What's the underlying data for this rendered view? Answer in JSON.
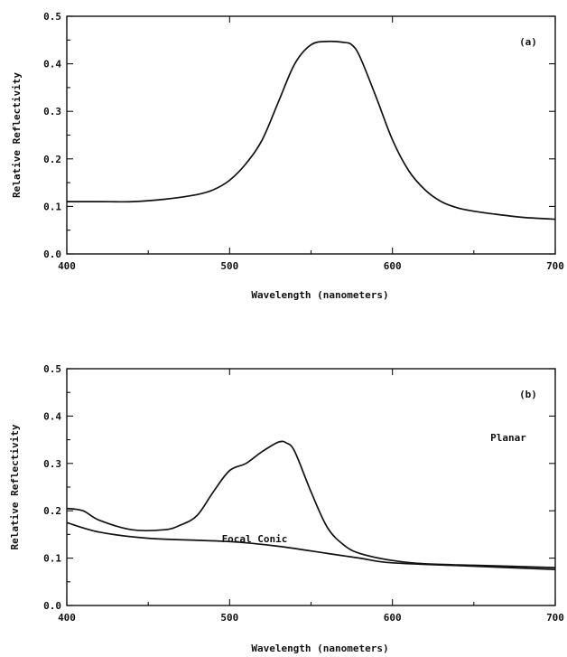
{
  "chart_data": [
    {
      "type": "line",
      "panel_label": "(a)",
      "xlabel": "Wavelength (nanometers)",
      "ylabel": "Relative Reflectivity",
      "xlim": [
        400,
        700
      ],
      "ylim": [
        0.0,
        0.5
      ],
      "xticks": [
        "400",
        "500",
        "600",
        "700"
      ],
      "yticks": [
        "0.0",
        "0.1",
        "0.2",
        "0.3",
        "0.4",
        "0.5"
      ],
      "grid": false,
      "series": [
        {
          "x": [
            400,
            420,
            440,
            460,
            480,
            490,
            500,
            510,
            520,
            530,
            540,
            550,
            560,
            570,
            575,
            580,
            590,
            600,
            610,
            620,
            630,
            640,
            650,
            660,
            680,
            700
          ],
          "y": [
            0.11,
            0.11,
            0.11,
            0.115,
            0.125,
            0.135,
            0.155,
            0.19,
            0.24,
            0.32,
            0.4,
            0.44,
            0.447,
            0.445,
            0.44,
            0.415,
            0.33,
            0.24,
            0.175,
            0.135,
            0.11,
            0.097,
            0.09,
            0.085,
            0.077,
            0.073
          ]
        }
      ]
    },
    {
      "type": "line",
      "panel_label": "(b)",
      "xlabel": "Wavelength (nanometers)",
      "ylabel": "Relative Reflectivity",
      "xlim": [
        400,
        700
      ],
      "ylim": [
        0.0,
        0.5
      ],
      "xticks": [
        "400",
        "500",
        "600",
        "700"
      ],
      "yticks": [
        "0.0",
        "0.1",
        "0.2",
        "0.3",
        "0.4",
        "0.5"
      ],
      "grid": false,
      "series": [
        {
          "name": "Planar",
          "x": [
            400,
            410,
            420,
            440,
            460,
            470,
            480,
            490,
            500,
            510,
            520,
            530,
            535,
            540,
            550,
            560,
            570,
            580,
            600,
            620,
            650,
            700
          ],
          "y": [
            0.205,
            0.2,
            0.18,
            0.16,
            0.16,
            0.17,
            0.19,
            0.24,
            0.285,
            0.3,
            0.325,
            0.345,
            0.343,
            0.325,
            0.24,
            0.165,
            0.128,
            0.11,
            0.095,
            0.088,
            0.085,
            0.08
          ]
        },
        {
          "name": "Focal Conic",
          "x": [
            400,
            420,
            450,
            500,
            530,
            560,
            580,
            600,
            650,
            700
          ],
          "y": [
            0.175,
            0.155,
            0.142,
            0.135,
            0.125,
            0.11,
            0.1,
            0.09,
            0.083,
            0.076
          ]
        }
      ]
    }
  ]
}
